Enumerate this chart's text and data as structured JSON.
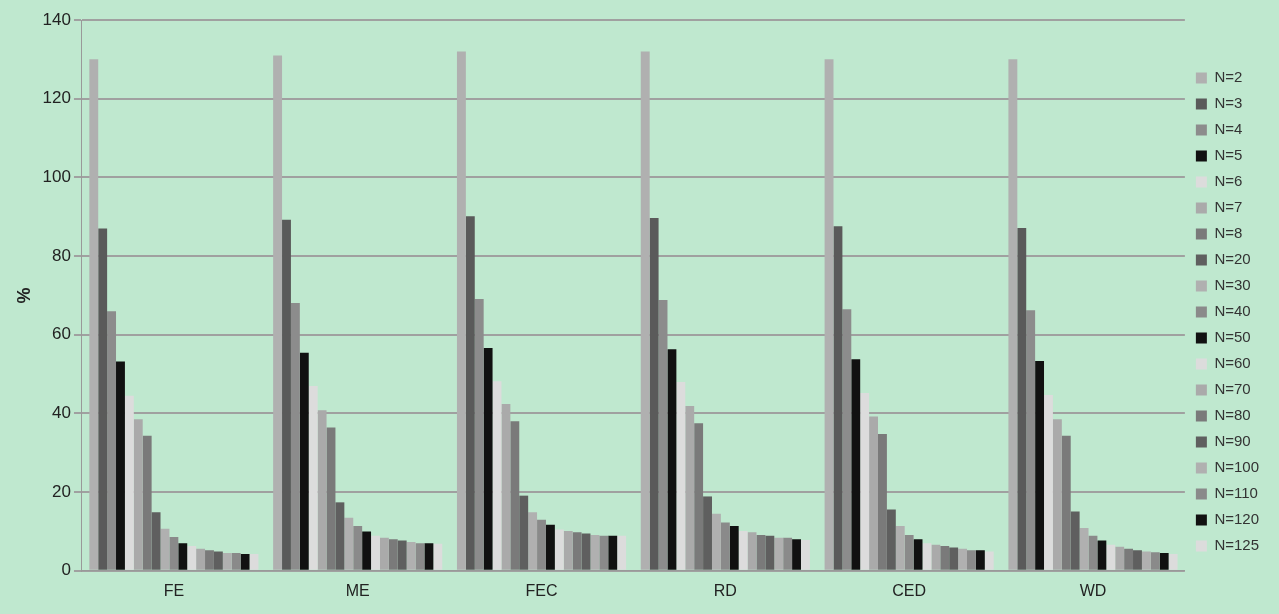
{
  "chart_data": {
    "type": "bar",
    "ylabel": "%",
    "categories": [
      "FE",
      "ME",
      "FEC",
      "RD",
      "CED",
      "WD"
    ],
    "ylim": [
      0,
      140
    ],
    "yticks": [
      0,
      20,
      40,
      60,
      80,
      100,
      120,
      140
    ],
    "grid": "y",
    "legend": "right",
    "series": [
      {
        "name": "N=2",
        "color": "#b0b0b0",
        "values": [
          130,
          131,
          132,
          132,
          130,
          130
        ]
      },
      {
        "name": "N=3",
        "color": "#5a5a5a",
        "values": [
          87,
          89.2,
          90.1,
          89.7,
          87.6,
          87.1
        ]
      },
      {
        "name": "N=4",
        "color": "#8c8c8c",
        "values": [
          66,
          68.1,
          69.1,
          68.8,
          66.5,
          66.2
        ]
      },
      {
        "name": "N=5",
        "color": "#111111",
        "values": [
          53.2,
          55.4,
          56.6,
          56.3,
          53.8,
          53.3
        ]
      },
      {
        "name": "N=6",
        "color": "#dcdcdc",
        "values": [
          44.5,
          47,
          48.2,
          48,
          45.2,
          44.7
        ]
      },
      {
        "name": "N=7",
        "color": "#aaaaaa",
        "values": [
          38.5,
          40.8,
          42.4,
          41.9,
          39.2,
          38.5
        ]
      },
      {
        "name": "N=8",
        "color": "#7a7a7a",
        "values": [
          34.3,
          36.4,
          38,
          37.5,
          34.8,
          34.3
        ]
      },
      {
        "name": "N=20",
        "color": "#5f5f5f",
        "values": [
          14.9,
          17.4,
          19.1,
          18.9,
          15.6,
          15.1
        ]
      },
      {
        "name": "N=30",
        "color": "#b0b0b0",
        "values": [
          10.7,
          13.5,
          14.9,
          14.5,
          11.4,
          10.9
        ]
      },
      {
        "name": "N=40",
        "color": "#8a8a8a",
        "values": [
          8.6,
          11.4,
          13,
          12.3,
          9.1,
          8.9
        ]
      },
      {
        "name": "N=50",
        "color": "#111111",
        "values": [
          7,
          10,
          11.7,
          11.4,
          8,
          7.7
        ]
      },
      {
        "name": "N=60",
        "color": "#dcdcdc",
        "values": [
          6.3,
          8.9,
          10.5,
          10.1,
          7,
          6.6
        ]
      },
      {
        "name": "N=70",
        "color": "#aaaaaa",
        "values": [
          5.6,
          8.4,
          10.1,
          9.8,
          6.6,
          6.1
        ]
      },
      {
        "name": "N=80",
        "color": "#7a7a7a",
        "values": [
          5.2,
          8,
          9.8,
          9.1,
          6.3,
          5.6
        ]
      },
      {
        "name": "N=90",
        "color": "#5f5f5f",
        "values": [
          4.9,
          7.7,
          9.5,
          8.9,
          5.9,
          5.2
        ]
      },
      {
        "name": "N=100",
        "color": "#b0b0b0",
        "values": [
          4.5,
          7.3,
          9.1,
          8.4,
          5.6,
          4.9
        ]
      },
      {
        "name": "N=110",
        "color": "#8a8a8a",
        "values": [
          4.5,
          7,
          8.9,
          8.4,
          5.2,
          4.7
        ]
      },
      {
        "name": "N=120",
        "color": "#111111",
        "values": [
          4.3,
          7,
          8.9,
          8,
          5.2,
          4.5
        ]
      },
      {
        "name": "N=125",
        "color": "#dcdcdc",
        "values": [
          4.3,
          6.9,
          8.9,
          7.8,
          4.9,
          4.3
        ]
      }
    ]
  }
}
